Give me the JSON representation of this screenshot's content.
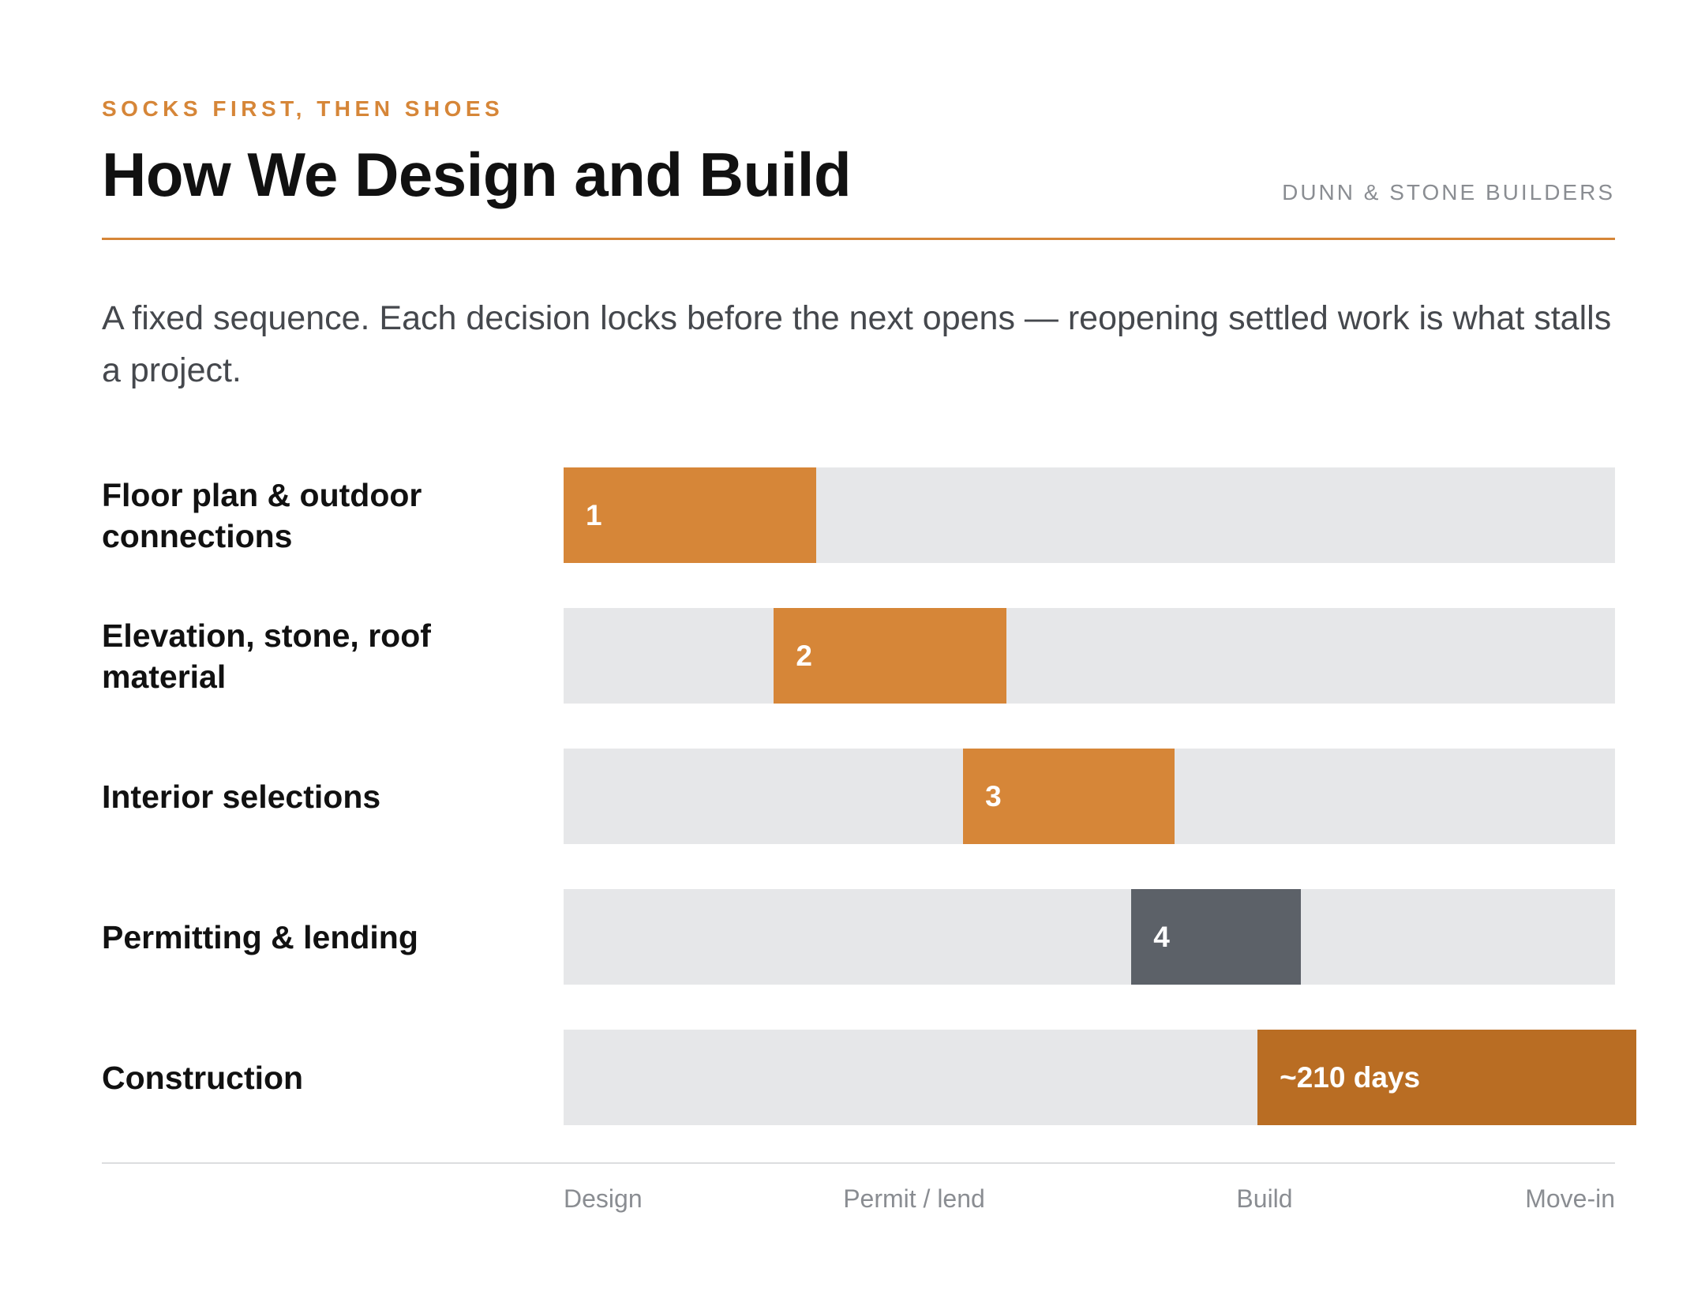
{
  "header": {
    "eyebrow": "SOCKS FIRST, THEN SHOES",
    "title": "How We Design and Build",
    "company": "DUNN & STONE BUILDERS",
    "lede": "A fixed sequence. Each decision locks before the next opens — reopening settled work is what stalls a project."
  },
  "colors": {
    "accent": "#d68638",
    "construction": "#b96d23",
    "permit": "#5c6168",
    "track": "#e6e7e9"
  },
  "chart_data": {
    "type": "gantt",
    "title": "",
    "xlabel": "",
    "ylabel": "",
    "x_range": [
      0,
      1
    ],
    "x_ticks": [
      "Design",
      "Permit / lend",
      "Build",
      "Move-in"
    ],
    "tasks": [
      {
        "name": "Floor plan & outdoor connections",
        "label": "1",
        "start": 0.0,
        "end": 0.24,
        "color": "#d68638"
      },
      {
        "name": "Elevation, stone, roof material",
        "label": "2",
        "start": 0.2,
        "end": 0.421,
        "color": "#d68638"
      },
      {
        "name": "Interior selections",
        "label": "3",
        "start": 0.38,
        "end": 0.581,
        "color": "#d68638"
      },
      {
        "name": "Permitting & lending",
        "label": "4",
        "start": 0.54,
        "end": 0.701,
        "color": "#5c6168"
      },
      {
        "name": "Construction",
        "label": "~210 days",
        "start": 0.66,
        "end": 1.02,
        "color": "#b96d23"
      }
    ]
  }
}
